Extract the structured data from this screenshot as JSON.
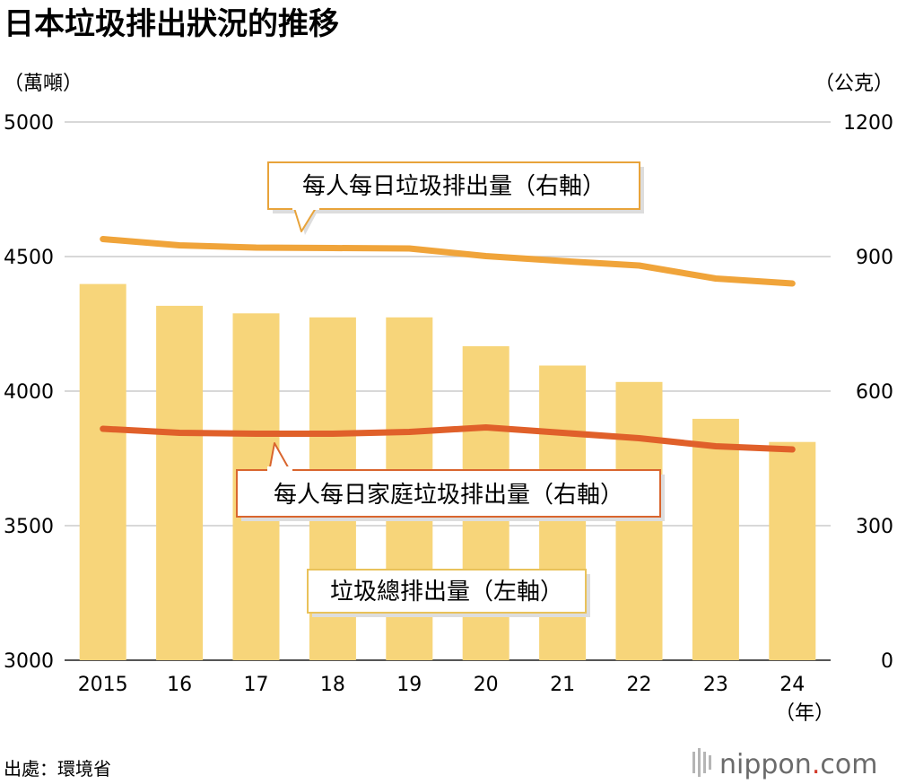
{
  "title": "日本垃圾排出狀況的推移",
  "left_unit": "（萬噸）",
  "right_unit": "（公克）",
  "year_unit": "（年）",
  "source": "出處：環境省",
  "brand": {
    "name": "nippon",
    "dot": ".",
    "tld": "com"
  },
  "colors": {
    "bar": "#f7d57a",
    "per_capita_line": "#f0a43a",
    "household_line": "#e0602a",
    "grid": "#cccccc",
    "callout_border": "#e8a33a",
    "callout_border_dark": "#d9652e",
    "callout_border_bar": "#e9c25a"
  },
  "chart_data": {
    "type": "bar",
    "categories": [
      "2015",
      "16",
      "17",
      "18",
      "19",
      "20",
      "21",
      "22",
      "23",
      "24"
    ],
    "left_axis": {
      "min": 3000,
      "max": 5000,
      "ticks": [
        "3000",
        "3500",
        "4000",
        "4500",
        "5000"
      ]
    },
    "right_axis": {
      "min": 0,
      "max": 1200,
      "ticks": [
        "0",
        "300",
        "600",
        "900",
        "1200"
      ]
    },
    "grid": true,
    "series": [
      {
        "name": "垃圾總排出量（左軸）",
        "kind": "bar",
        "axis": "left",
        "values": [
          4398,
          4317,
          4289,
          4274,
          4274,
          4167,
          4095,
          4034,
          3897,
          3811
        ]
      },
      {
        "name": "每人每日垃圾排出量（右軸）",
        "kind": "line",
        "axis": "right",
        "values": [
          939,
          925,
          920,
          919,
          918,
          901,
          890,
          880,
          851,
          840
        ]
      },
      {
        "name": "每人每日家庭垃圾排出量（右軸）",
        "kind": "line",
        "axis": "right",
        "values": [
          516,
          507,
          505,
          505,
          509,
          519,
          507,
          495,
          477,
          470
        ]
      }
    ]
  }
}
